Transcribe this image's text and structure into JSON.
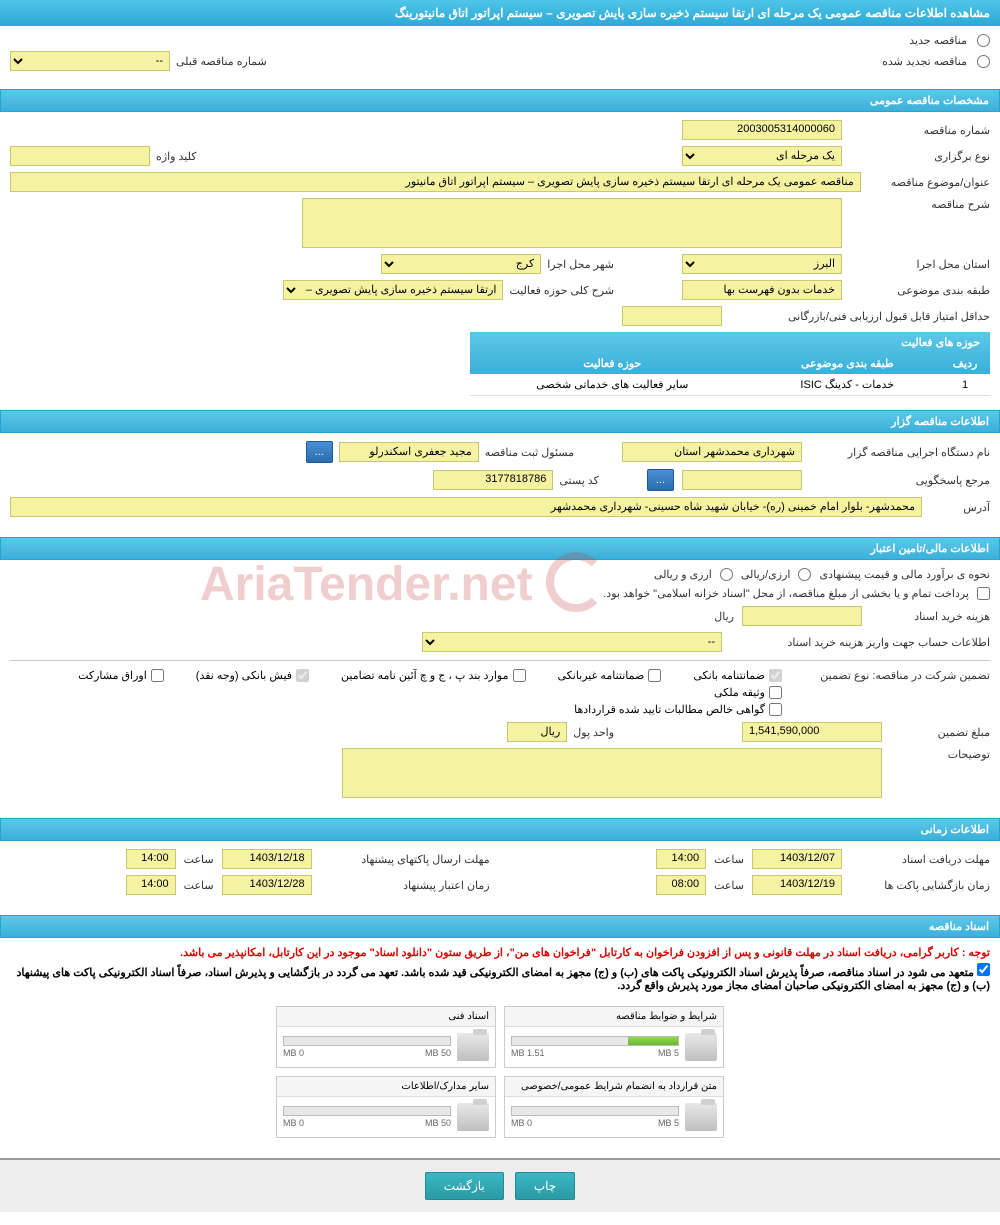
{
  "header": {
    "title": "مشاهده اطلاعات مناقصه عمومی یک مرحله ای ارتقا سیستم ذخیره سازی پایش تصویری – سیستم اپراتور اتاق مانیتورینگ"
  },
  "status_radios": {
    "new": "مناقصه جدید",
    "renewed": "مناقصه تجدید شده",
    "prev_number_label": "شماره مناقصه قبلی",
    "prev_number_value": "--"
  },
  "sections": {
    "general": "مشخصات مناقصه عمومی",
    "organizer": "اطلاعات مناقصه گزار",
    "financial": "اطلاعات مالی/تامین اعتبار",
    "timing": "اطلاعات زمانی",
    "documents": "اسناد مناقصه"
  },
  "general": {
    "tender_number_label": "شماره مناقصه",
    "tender_number": "2003005314000060",
    "type_label": "نوع برگزاری",
    "type_value": "یک مرحله ای",
    "keyword_label": "کلید واژه",
    "keyword_value": "",
    "subject_label": "عنوان/موضوع مناقصه",
    "subject_value": "مناقصه عمومی یک مرحله ای ارتقا سیستم ذخیره سازی پایش تصویری – سیستم اپراتور اتاق مانیتور",
    "description_label": "شرح مناقصه",
    "description_value": "",
    "province_label": "استان محل اجرا",
    "province_value": "البرز",
    "city_label": "شهر محل اجرا",
    "city_value": "کرج",
    "classification_label": "طبقه بندی موضوعی",
    "classification_value": "خدمات بدون فهرست بها",
    "activity_scope_label": "شرح کلی حوزه فعالیت",
    "activity_scope_value": "ارتقا سیستم ذخیره سازی پایش تصویری – سیستم",
    "min_score_label": "حداقل امتیاز قابل قبول ارزیابی فنی/بازرگانی",
    "min_score_value": ""
  },
  "activity_table": {
    "title": "حوزه های فعالیت",
    "col_row": "ردیف",
    "col_class": "طبقه بندی موضوعی",
    "col_activity": "حوزه فعالیت",
    "rows": [
      {
        "num": "1",
        "class": "خدمات - کدینگ ISIC",
        "activity": "سایر فعالیت های خدماتی شخصی"
      }
    ]
  },
  "organizer": {
    "org_label": "نام دستگاه اجرایی مناقصه گزار",
    "org_value": "شهرداری محمدشهر استان",
    "registrar_label": "مسئول ثبت مناقصه",
    "registrar_value": "مجید جعفری اسکندرلو",
    "reference_label": "مرجع پاسخگویی",
    "reference_value": "",
    "postal_label": "کد پستی",
    "postal_value": "3177818786",
    "address_label": "آدرس",
    "address_value": "محمدشهر- بلوار امام خمینی (ره)- خیابان شهید شاه حسینی- شهرداری محمدشهر",
    "btn_more": "..."
  },
  "financial": {
    "estimate_label": "نحوه ی برآورد مالی و قیمت پیشنهادی",
    "currency_opt1": "ارزی/ریالی",
    "currency_opt2": "ارزی و ریالی",
    "payment_note": "پرداخت تمام و یا بخشی از مبلغ مناقصه، از محل \"اسناد خزانه اسلامی\" خواهد بود.",
    "purchase_cost_label": "هزینه خرید اسناد",
    "purchase_cost_value": "",
    "currency_label": "ریال",
    "account_label": "اطلاعات حساب جهت واریز هزینه خرید اسناد",
    "account_value": "--",
    "guarantee_type_label": "تضمین شرکت در مناقصه:   نوع تضمین",
    "guarantee_opts": {
      "bank_guarantee": "ضمانتنامه بانکی",
      "nonbank_guarantee": "ضمانتنامه غیربانکی",
      "regulation_items": "موارد بند پ ، ج و چ آئین نامه تضامین",
      "cash": "فیش بانکی (وجه نقد)",
      "securities": "اوراق مشارکت",
      "property": "وثیقه ملکی",
      "contract_cert": "گواهی خالص مطالبات تایید شده قراردادها"
    },
    "guarantee_amount_label": "مبلغ تضمین",
    "guarantee_amount": "1,541,590,000",
    "unit_label": "واحد پول",
    "unit_value": "ریال",
    "notes_label": "توضیحات",
    "notes_value": ""
  },
  "timing": {
    "receipt_label": "مهلت دریافت اسناد",
    "receipt_date": "1403/12/07",
    "receipt_time": "14:00",
    "submit_label": "مهلت ارسال پاکتهای پیشنهاد",
    "submit_date": "1403/12/18",
    "submit_time": "14:00",
    "opening_label": "زمان بازگشایی پاکت ها",
    "opening_date": "1403/12/19",
    "opening_time": "08:00",
    "validity_label": "زمان اعتبار پیشنهاد",
    "validity_date": "1403/12/28",
    "validity_time": "14:00",
    "time_label": "ساعت"
  },
  "documents": {
    "notice1": "توجه : کاربر گرامی، دریافت اسناد در مهلت قانونی و پس از افزودن فراخوان به کارتابل \"فراخوان های من\"، از طریق ستون \"دانلود اسناد\" موجود در این کارتابل، امکانپذیر می باشد.",
    "notice2_prefix": "متعهد می شود در اسناد مناقصه، صرفاً پذیرش اسناد الکترونیکی پاکت های (ب) و (ج) مجهز به امضای الکترونیکی قید شده باشد. تعهد می گردد در بازگشایی و پذیرش اسناد، صرفاً اسناد الکترونیکی پاکت های پیشنهاد (ب) و (ج) مجهز به امضای الکترونیکی صاحبان امضای مجاز مورد پذیرش واقع گردد.",
    "files": [
      {
        "name": "شرایط و ضوابط مناقصه",
        "used": "1.51 MB",
        "total": "5 MB",
        "fill_pct": 30
      },
      {
        "name": "اسناد فنی",
        "used": "0 MB",
        "total": "50 MB",
        "fill_pct": 0
      },
      {
        "name": "متن قرارداد به انضمام شرایط عمومی/خصوصی",
        "used": "0 MB",
        "total": "5 MB",
        "fill_pct": 0
      },
      {
        "name": "سایر مدارک/اطلاعات",
        "used": "0 MB",
        "total": "50 MB",
        "fill_pct": 0
      }
    ]
  },
  "footer": {
    "print": "چاپ",
    "back": "بازگشت"
  },
  "watermark": "AriaTender.net",
  "colors": {
    "header_bg": "#3bb0da",
    "yellow_field": "#f5f3a1",
    "red_text": "#d00000"
  }
}
